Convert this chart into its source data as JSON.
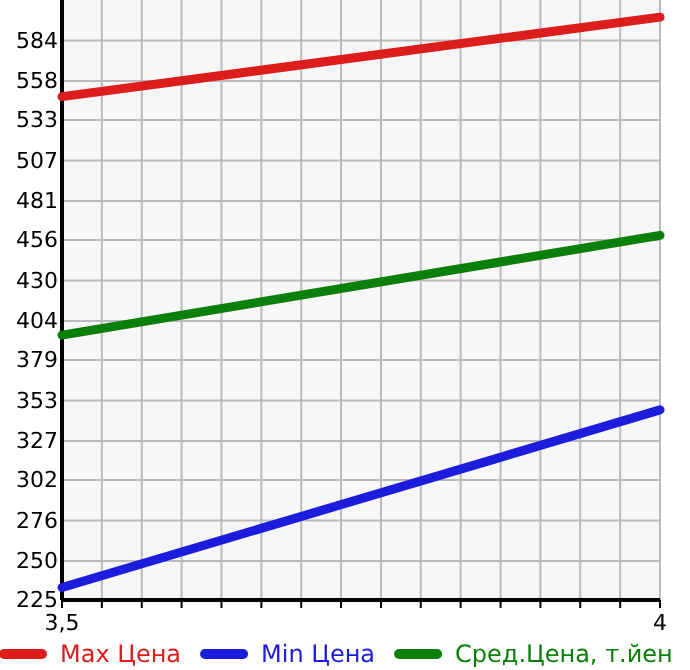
{
  "chart_data": {
    "type": "line",
    "x": [
      3.5,
      4
    ],
    "xlim": [
      3.5,
      4
    ],
    "ylim": [
      225,
      610
    ],
    "xticks": [
      {
        "value": 3.5,
        "label": "3,5"
      },
      {
        "value": 3.5333,
        "label": null
      },
      {
        "value": 3.5667,
        "label": null
      },
      {
        "value": 3.6,
        "label": null
      },
      {
        "value": 3.6333,
        "label": null
      },
      {
        "value": 3.6667,
        "label": null
      },
      {
        "value": 3.7,
        "label": null
      },
      {
        "value": 3.7333,
        "label": null
      },
      {
        "value": 3.7667,
        "label": null
      },
      {
        "value": 3.8,
        "label": null
      },
      {
        "value": 3.8333,
        "label": null
      },
      {
        "value": 3.8667,
        "label": null
      },
      {
        "value": 3.9,
        "label": null
      },
      {
        "value": 3.9333,
        "label": null
      },
      {
        "value": 3.9667,
        "label": null
      },
      {
        "value": 4,
        "label": "4"
      }
    ],
    "yticks": [
      225,
      250,
      276,
      302,
      327,
      353,
      379,
      404,
      430,
      456,
      481,
      507,
      533,
      558,
      584
    ],
    "grid": true,
    "legend": "bottom",
    "marker": "none",
    "line_style": "solid",
    "series": [
      {
        "name": "Max Цена",
        "color": "#dd1c1c",
        "values": [
          548,
          599
        ]
      },
      {
        "name": "Min Цена",
        "color": "#1c1cdd",
        "values": [
          233,
          347
        ]
      },
      {
        "name": "Сред.Цена, т.йен",
        "color": "#0a800a",
        "values": [
          395,
          459
        ]
      }
    ]
  }
}
